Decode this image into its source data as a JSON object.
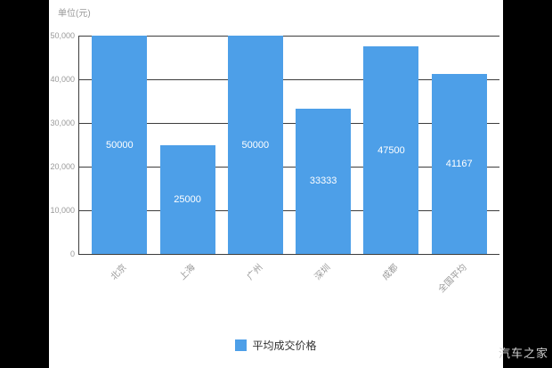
{
  "colors": {
    "background": "#000000",
    "panel": "#ffffff",
    "bar": "#4d9fe8",
    "grid": "#3d3d3d",
    "axis": "#3d3d3d",
    "tick_text": "#999999",
    "value_text": "#ffffff",
    "legend_text": "#333333",
    "watermark": "#cfcfcf"
  },
  "chart_data": {
    "type": "bar",
    "unit_label": "单位(元)",
    "categories": [
      "北京",
      "上海",
      "广州",
      "深圳",
      "成都",
      "全国平均"
    ],
    "values": [
      50000,
      25000,
      50000,
      33333,
      47500,
      41167
    ],
    "value_labels": [
      "50000",
      "25000",
      "50000",
      "33333",
      "47500",
      "41167"
    ],
    "ylim": [
      0,
      50000
    ],
    "yticks": [
      "50,000",
      "40,000",
      "30,000",
      "20,000",
      "10,000",
      "0"
    ],
    "grid": "on",
    "legend_position": "bottom",
    "legend": [
      {
        "label": "平均成交价格",
        "color": "#4d9fe8"
      }
    ]
  },
  "watermark": "汽车之家"
}
